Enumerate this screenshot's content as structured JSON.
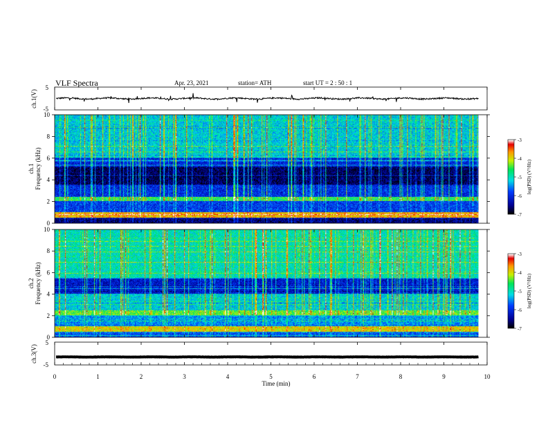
{
  "header": {
    "title": "VLF  Spectra",
    "date": "Apr. 23, 2021",
    "station": "station= ATH",
    "start": "start  UT  =    2  : 50 : 1"
  },
  "chart_data": [
    {
      "type": "line",
      "panel": "ch1-waveform",
      "ylabel": "ch.1(V)",
      "ylim": [
        -5,
        5
      ],
      "yticks": [
        "5",
        "-5"
      ],
      "baseline": 0,
      "noise_amplitude": 0.6
    },
    {
      "type": "heatmap",
      "panel": "ch1-spectrogram",
      "ylabel_line1": "ch.1",
      "ylabel_line2": "Frequency  (kHz)",
      "ylim": [
        0,
        10
      ],
      "yticks": [
        "0",
        "2",
        "4",
        "6",
        "8",
        "10"
      ],
      "colorbar": {
        "label": "log(PSD) (V²/Hz)",
        "range": [
          -7,
          -3
        ],
        "ticks": [
          "-3",
          "-4",
          "-5",
          "-6",
          "-7"
        ]
      },
      "bands_khz": [
        {
          "from": 0.0,
          "to": 0.5,
          "level": -6.6
        },
        {
          "from": 0.5,
          "to": 1.0,
          "level": -3.8
        },
        {
          "from": 1.0,
          "to": 2.0,
          "level": -5.9
        },
        {
          "from": 2.0,
          "to": 2.4,
          "level": -4.6
        },
        {
          "from": 2.4,
          "to": 3.5,
          "level": -6.0
        },
        {
          "from": 3.5,
          "to": 5.2,
          "level": -6.7
        },
        {
          "from": 5.2,
          "to": 6.0,
          "level": -6.1
        },
        {
          "from": 6.0,
          "to": 10.0,
          "level": -5.2
        }
      ]
    },
    {
      "type": "heatmap",
      "panel": "ch2-spectrogram",
      "ylabel_line1": "ch.2",
      "ylabel_line2": "Frequency  (kHz)",
      "ylim": [
        0,
        10
      ],
      "yticks": [
        "0",
        "2",
        "4",
        "6",
        "8",
        "10"
      ],
      "colorbar": {
        "label": "log(PSD) (V²/Hz)",
        "range": [
          -7,
          -3
        ],
        "ticks": [
          "-3",
          "-4",
          "-5",
          "-6",
          "-7"
        ]
      },
      "bands_khz": [
        {
          "from": 0.0,
          "to": 0.5,
          "level": -5.8
        },
        {
          "from": 0.5,
          "to": 1.0,
          "level": -4.0
        },
        {
          "from": 1.0,
          "to": 2.0,
          "level": -5.5
        },
        {
          "from": 2.0,
          "to": 2.5,
          "level": -4.4
        },
        {
          "from": 2.5,
          "to": 4.0,
          "level": -5.2
        },
        {
          "from": 4.0,
          "to": 5.5,
          "level": -6.2
        },
        {
          "from": 5.5,
          "to": 10.0,
          "level": -5.0
        }
      ]
    },
    {
      "type": "line",
      "panel": "ch3-waveform",
      "ylabel": "ch.3(V)",
      "ylim": [
        -5,
        5
      ],
      "yticks": [
        "5",
        "-5"
      ],
      "baseline": -1.5,
      "noise_amplitude": 0.1
    }
  ],
  "x_axis": {
    "label": "Time  (min)",
    "xlim": [
      0,
      10
    ],
    "ticks": [
      "0",
      "1",
      "2",
      "3",
      "4",
      "5",
      "6",
      "7",
      "8",
      "9",
      "10"
    ],
    "data_end": 9.8
  },
  "colors": {
    "low": "#000000",
    "mid": "#00ff66",
    "high": "#ff0000",
    "top": "#ffffff"
  }
}
